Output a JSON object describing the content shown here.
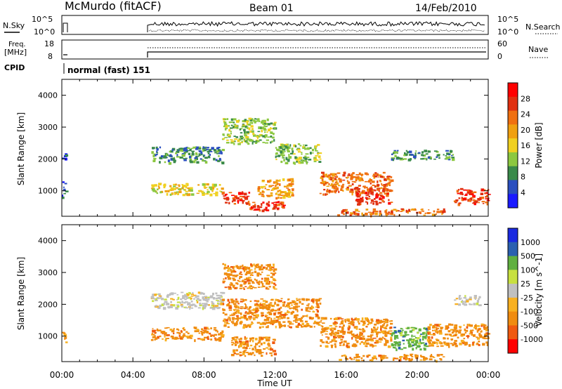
{
  "header": {
    "station": "McMurdo (fitACF)",
    "beam": "Beam 01",
    "date": "14/Feb/2010"
  },
  "noise_panel": {
    "left_label": "N.Sky",
    "right_label": "N.Search",
    "ticks_left": [
      "10^5",
      "10^0"
    ],
    "ticks_right": [
      "10^5",
      "10^0"
    ]
  },
  "freq_panel": {
    "left_label_1": "Freq.",
    "left_label_2": "[MHz]",
    "right_label": "Nave",
    "ticks_left": [
      "18",
      "8"
    ],
    "ticks_right": [
      "60",
      "0"
    ]
  },
  "cpid": {
    "label": "CPID",
    "value": "normal (fast) 151"
  },
  "x_axis": {
    "title": "Time UT",
    "ticks": [
      "00:00",
      "04:00",
      "08:00",
      "12:00",
      "16:00",
      "20:00",
      "00:00"
    ]
  },
  "colors": {
    "power": [
      "#1a1aff",
      "#2a4fbf",
      "#3a8a4a",
      "#8cc840",
      "#f0d020",
      "#f0a010",
      "#f07010",
      "#e03010",
      "#ff0000"
    ],
    "velocity": [
      "#ff0000",
      "#f05a10",
      "#f08c10",
      "#f8b020",
      "#c0c0c0",
      "#c8e040",
      "#60b040",
      "#2a60b0",
      "#1a2ae0"
    ]
  },
  "chart_data": [
    {
      "type": "heatmap",
      "panel": "power",
      "ylabel": "Slant Range [km]",
      "yticks": [
        "1000",
        "2000",
        "3000",
        "4000"
      ],
      "ylim": [
        200,
        4500
      ],
      "xlim_hours": [
        0,
        24
      ],
      "colorbar_label": "Power [dB]",
      "colorbar_ticks": [
        "4",
        "8",
        "12",
        "16",
        "20",
        "24",
        "28"
      ],
      "colorbar_range": [
        0,
        32
      ],
      "patches": [
        {
          "t0": 0.0,
          "t1": 0.2,
          "r0": 800,
          "r1": 1300,
          "v": 6
        },
        {
          "t0": 0.0,
          "t1": 0.2,
          "r0": 2000,
          "r1": 2200,
          "v": 5
        },
        {
          "t0": 5.0,
          "t1": 9.0,
          "r0": 1900,
          "r1": 2400,
          "v": 10
        },
        {
          "t0": 5.0,
          "t1": 9.0,
          "r0": 900,
          "r1": 1250,
          "v": 16
        },
        {
          "t0": 9.0,
          "t1": 10.5,
          "r0": 600,
          "r1": 1000,
          "v": 26
        },
        {
          "t0": 10.5,
          "t1": 12.5,
          "r0": 400,
          "r1": 700,
          "v": 27
        },
        {
          "t0": 11.0,
          "t1": 13.0,
          "r0": 800,
          "r1": 1400,
          "v": 20
        },
        {
          "t0": 12.0,
          "t1": 14.5,
          "r0": 1900,
          "r1": 2500,
          "v": 12
        },
        {
          "t0": 14.5,
          "t1": 18.5,
          "r0": 900,
          "r1": 1600,
          "v": 22
        },
        {
          "t0": 16.5,
          "t1": 18.5,
          "r0": 600,
          "r1": 1100,
          "v": 27
        },
        {
          "t0": 15.5,
          "t1": 21.5,
          "r0": 250,
          "r1": 450,
          "v": 24
        },
        {
          "t0": 18.5,
          "t1": 22.0,
          "r0": 2000,
          "r1": 2300,
          "v": 10
        },
        {
          "t0": 22.0,
          "t1": 24.0,
          "r0": 600,
          "r1": 1100,
          "v": 27
        },
        {
          "t0": 9.0,
          "t1": 12.0,
          "r0": 2500,
          "r1": 3300,
          "v": 14
        }
      ]
    },
    {
      "type": "heatmap",
      "panel": "velocity",
      "ylabel": "Slant Range [km]",
      "yticks": [
        "1000",
        "2000",
        "3000",
        "4000"
      ],
      "ylim": [
        200,
        4500
      ],
      "xlim_hours": [
        0,
        24
      ],
      "colorbar_label": "Velocity [m s^-1]",
      "colorbar_ticks": [
        "-1000",
        "-500",
        "-100",
        "-25",
        "25",
        "100",
        "500",
        "1000"
      ],
      "patches": [
        {
          "t0": 0.0,
          "t1": 0.2,
          "r0": 800,
          "r1": 1300,
          "v": -100
        },
        {
          "t0": 5.0,
          "t1": 9.0,
          "r0": 1900,
          "r1": 2400,
          "v": 0
        },
        {
          "t0": 5.0,
          "t1": 9.0,
          "r0": 900,
          "r1": 1300,
          "v": -100
        },
        {
          "t0": 9.0,
          "t1": 14.5,
          "r0": 1300,
          "r1": 2200,
          "v": -200
        },
        {
          "t0": 9.5,
          "t1": 12.0,
          "r0": 400,
          "r1": 1000,
          "v": -200
        },
        {
          "t0": 14.5,
          "t1": 18.5,
          "r0": 700,
          "r1": 1600,
          "v": -300
        },
        {
          "t0": 18.5,
          "t1": 20.5,
          "r0": 600,
          "r1": 1300,
          "v": 150
        },
        {
          "t0": 20.5,
          "t1": 24.0,
          "r0": 700,
          "r1": 1400,
          "v": -300
        },
        {
          "t0": 15.5,
          "t1": 21.5,
          "r0": 250,
          "r1": 450,
          "v": -150
        },
        {
          "t0": 22.0,
          "t1": 23.5,
          "r0": 2000,
          "r1": 2300,
          "v": 0
        },
        {
          "t0": 9.0,
          "t1": 12.0,
          "r0": 2500,
          "r1": 3300,
          "v": -100
        }
      ]
    }
  ]
}
